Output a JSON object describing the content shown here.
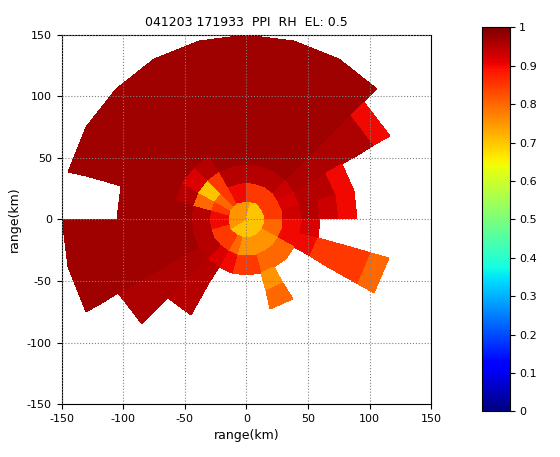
{
  "chart_data": {
    "type": "polar_heatmap",
    "title": "041203 171933  PPI  RH  EL: 0.5",
    "x_label": "range(km)",
    "y_label": "range(km)",
    "xlim": [
      -150,
      150
    ],
    "ylim": [
      -150,
      150
    ],
    "xticks": [
      -150,
      -100,
      -50,
      0,
      50,
      100,
      150
    ],
    "yticks": [
      -150,
      -100,
      -50,
      0,
      50,
      100,
      150
    ],
    "grid": true,
    "azimuth_edges": [
      0,
      15,
      30,
      45,
      60,
      75,
      90,
      105,
      120,
      135,
      150,
      165,
      180,
      195,
      210,
      225,
      240,
      255,
      270,
      285,
      300,
      315,
      330,
      345,
      360
    ],
    "range_edges": [
      0,
      15,
      30,
      45,
      60,
      75,
      90,
      105,
      120,
      135,
      150
    ],
    "cells": [
      [
        0.75,
        0.85,
        0.95,
        0.97,
        0.97,
        0.97,
        0.97,
        0.97,
        0.97,
        0.97
      ],
      [
        0.7,
        0.85,
        0.95,
        0.97,
        0.97,
        0.97,
        0.97,
        0.97,
        0.97,
        0.97
      ],
      [
        0.7,
        0.85,
        0.95,
        0.97,
        0.97,
        0.97,
        0.97,
        0.97,
        0.97,
        0.97
      ],
      [
        0.7,
        0.85,
        0.93,
        0.96,
        0.96,
        0.96,
        0.96,
        0.96,
        0.9,
        null
      ],
      [
        0.7,
        0.85,
        0.92,
        0.95,
        0.95,
        0.9,
        null,
        null,
        null,
        null
      ],
      [
        0.7,
        0.85,
        0.93,
        0.95,
        0.93,
        0.9,
        null,
        null,
        null,
        null
      ],
      [
        0.7,
        0.8,
        0.9,
        0.92,
        null,
        null,
        null,
        null,
        null,
        null
      ],
      [
        0.7,
        0.8,
        0.9,
        0.9,
        0.85,
        0.85,
        0.85,
        0.8,
        null,
        null
      ],
      [
        0.7,
        0.75,
        0.8,
        null,
        null,
        null,
        null,
        null,
        null,
        null
      ],
      [
        0.7,
        0.75,
        0.8,
        null,
        null,
        null,
        null,
        null,
        null,
        null
      ],
      [
        0.7,
        0.75,
        0.8,
        0.75,
        0.8,
        null,
        null,
        null,
        null,
        null
      ],
      [
        0.7,
        0.75,
        0.85,
        null,
        null,
        null,
        null,
        null,
        null,
        null
      ],
      [
        0.7,
        0.75,
        0.85,
        null,
        null,
        null,
        null,
        null,
        null,
        null
      ],
      [
        0.7,
        0.8,
        0.9,
        null,
        null,
        null,
        null,
        null,
        null,
        null
      ],
      [
        0.7,
        0.85,
        0.92,
        0.95,
        0.95,
        0.95,
        null,
        null,
        null,
        null
      ],
      [
        0.7,
        0.85,
        0.95,
        0.96,
        0.96,
        0.96,
        0.96,
        0.96,
        null,
        null
      ],
      [
        0.75,
        0.85,
        0.95,
        0.97,
        0.97,
        0.97,
        0.97,
        0.97,
        0.97,
        0.97
      ],
      [
        0.75,
        0.9,
        0.95,
        0.97,
        0.97,
        0.97,
        0.97,
        0.97,
        0.97,
        0.97
      ],
      [
        0.75,
        0.9,
        0.95,
        0.97,
        0.97,
        0.97,
        0.97,
        null,
        null,
        null
      ],
      [
        0.75,
        0.85,
        0.8,
        0.95,
        0.97,
        0.97,
        0.97,
        0.97,
        0.97,
        0.97
      ],
      [
        0.75,
        0.8,
        0.7,
        0.92,
        0.97,
        0.97,
        0.97,
        0.97,
        0.97,
        0.97
      ],
      [
        0.75,
        0.85,
        0.85,
        0.95,
        0.97,
        0.97,
        0.97,
        0.97,
        0.97,
        0.97
      ],
      [
        0.75,
        0.9,
        0.95,
        0.97,
        0.97,
        0.97,
        0.97,
        0.97,
        0.97,
        0.97
      ],
      [
        0.75,
        0.9,
        0.95,
        0.97,
        0.97,
        0.97,
        0.97,
        0.97,
        0.97,
        0.97
      ]
    ],
    "colorbar_range": [
      0,
      1
    ],
    "colorbar_ticks": [
      0,
      0.1,
      0.2,
      0.3,
      0.4,
      0.5,
      0.6,
      0.7,
      0.8,
      0.9,
      1
    ]
  }
}
